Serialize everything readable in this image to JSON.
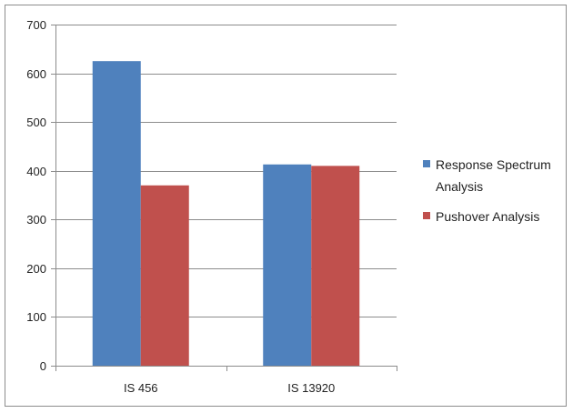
{
  "chart_data": {
    "type": "bar",
    "categories": [
      "IS 456",
      "IS 13920"
    ],
    "series": [
      {
        "name": "Response Spectrum Analysis",
        "label_lines": [
          "Response Spectrum",
          "Analysis"
        ],
        "color": "#4f81bd",
        "values": [
          625,
          413
        ]
      },
      {
        "name": "Pushover Analysis",
        "label_lines": [
          "Pushover Analysis"
        ],
        "color": "#c0504d",
        "values": [
          370,
          410
        ]
      }
    ],
    "yticks": [
      0,
      100,
      200,
      300,
      400,
      500,
      600,
      700
    ],
    "ylim": [
      0,
      700
    ],
    "grid": true,
    "legend_position": "right"
  }
}
